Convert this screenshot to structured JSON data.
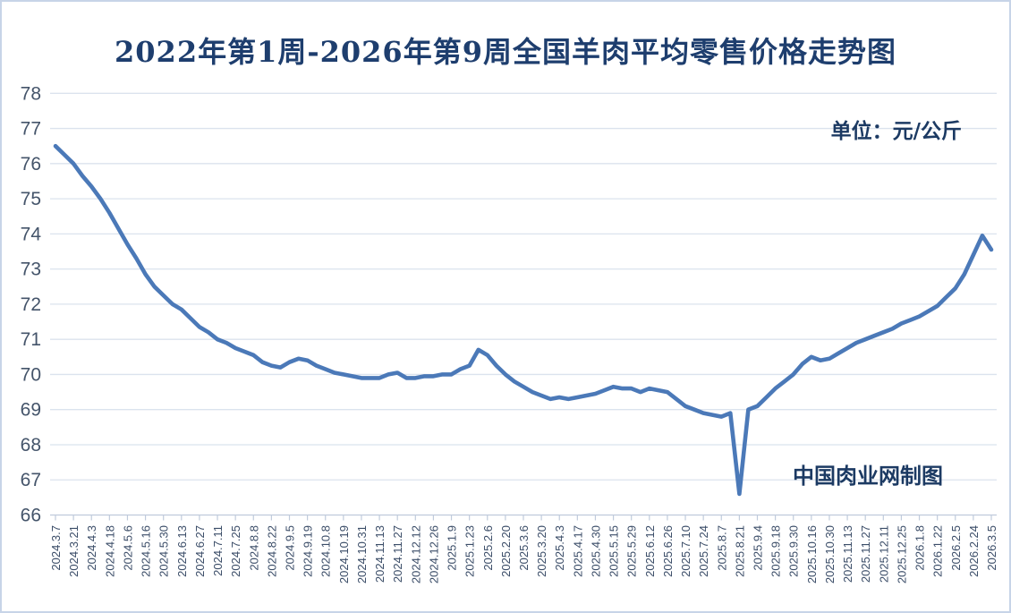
{
  "title": "2022年第1周-2026年第9周全国羊肉平均零售价格走势图",
  "unit_label": "单位：元/公斤",
  "watermark": "中国肉业网制图",
  "colors": {
    "line": "#4b79b8",
    "grid": "#dbe3ee",
    "axis": "#c0cbdc",
    "title_text": "#1e3e6e",
    "label_text": "#44546a",
    "frame": "#c7d4e8"
  },
  "chart_data": {
    "type": "line",
    "title": "2022年第1周-2026年第9周全国羊肉平均零售价格走势图",
    "unit": "元/公斤",
    "xlabel": "",
    "ylabel": "",
    "ylim": [
      66,
      78
    ],
    "grid": true,
    "legend_position": "none",
    "y_ticks": [
      78,
      77,
      76,
      75,
      74,
      73,
      72,
      71,
      70,
      69,
      68,
      67,
      66
    ],
    "x_tick_labels": [
      "2024.3.7",
      "2024.3.21",
      "2024.4.3",
      "2024.4.18",
      "2024.5.6",
      "2024.5.16",
      "2024.5.30",
      "2024.6.13",
      "2024.6.27",
      "2024.7.11",
      "2024.7.25",
      "2024.8.8",
      "2024.8.22",
      "2024.9.5",
      "2024.9.19",
      "2024.10.8",
      "2024.10.19",
      "2024.10.31",
      "2024.11.13",
      "2024.11.27",
      "2024.12.12",
      "2024.12.26",
      "2025.1.9",
      "2025.1.23",
      "2025.2.6",
      "2025.2.20",
      "2025.3.6",
      "2025.3.20",
      "2025.4.3",
      "2025.4.17",
      "2025.4.30",
      "2025.5.15",
      "2025.5.29",
      "2025.6.12",
      "2025.6.26",
      "2025.7.10",
      "2025.7.24",
      "2025.8.7",
      "2025.8.21",
      "2025.9.4",
      "2025.9.18",
      "2025.9.30",
      "2025.10.16",
      "2025.10.30",
      "2025.11.13",
      "2025.11.27",
      "2025.12.11",
      "2025.12.25",
      "2026.1.8",
      "2026.1.22",
      "2026.2.5",
      "2026.2.24",
      "2026.3.5"
    ],
    "series": [
      {
        "name": "全国羊肉平均零售价格",
        "color": "#4b79b8",
        "points": [
          [
            0,
            76.5
          ],
          [
            0.5,
            76.25
          ],
          [
            1,
            76.0
          ],
          [
            1.5,
            75.65
          ],
          [
            2,
            75.35
          ],
          [
            2.5,
            75.0
          ],
          [
            3,
            74.6
          ],
          [
            3.5,
            74.15
          ],
          [
            4,
            73.7
          ],
          [
            4.5,
            73.3
          ],
          [
            5,
            72.85
          ],
          [
            5.5,
            72.5
          ],
          [
            6,
            72.25
          ],
          [
            6.5,
            72.0
          ],
          [
            7,
            71.85
          ],
          [
            7.5,
            71.6
          ],
          [
            8,
            71.35
          ],
          [
            8.5,
            71.2
          ],
          [
            9,
            71.0
          ],
          [
            9.5,
            70.9
          ],
          [
            10,
            70.75
          ],
          [
            10.5,
            70.65
          ],
          [
            11,
            70.55
          ],
          [
            11.5,
            70.35
          ],
          [
            12,
            70.25
          ],
          [
            12.5,
            70.2
          ],
          [
            13,
            70.35
          ],
          [
            13.5,
            70.45
          ],
          [
            14,
            70.4
          ],
          [
            14.5,
            70.25
          ],
          [
            15,
            70.15
          ],
          [
            15.5,
            70.05
          ],
          [
            16,
            70.0
          ],
          [
            16.5,
            69.95
          ],
          [
            17,
            69.9
          ],
          [
            17.5,
            69.9
          ],
          [
            18,
            69.9
          ],
          [
            18.5,
            70.0
          ],
          [
            19,
            70.05
          ],
          [
            19.5,
            69.9
          ],
          [
            20,
            69.9
          ],
          [
            20.5,
            69.95
          ],
          [
            21,
            69.95
          ],
          [
            21.5,
            70.0
          ],
          [
            22,
            70.0
          ],
          [
            22.5,
            70.15
          ],
          [
            23,
            70.25
          ],
          [
            23.5,
            70.7
          ],
          [
            24,
            70.55
          ],
          [
            24.5,
            70.25
          ],
          [
            25,
            70.0
          ],
          [
            25.5,
            69.8
          ],
          [
            26,
            69.65
          ],
          [
            26.5,
            69.5
          ],
          [
            27,
            69.4
          ],
          [
            27.5,
            69.3
          ],
          [
            28,
            69.35
          ],
          [
            28.5,
            69.3
          ],
          [
            29,
            69.35
          ],
          [
            29.5,
            69.4
          ],
          [
            30,
            69.45
          ],
          [
            30.5,
            69.55
          ],
          [
            31,
            69.65
          ],
          [
            31.5,
            69.6
          ],
          [
            32,
            69.6
          ],
          [
            32.5,
            69.5
          ],
          [
            33,
            69.6
          ],
          [
            33.5,
            69.55
          ],
          [
            34,
            69.5
          ],
          [
            34.5,
            69.3
          ],
          [
            35,
            69.1
          ],
          [
            35.5,
            69.0
          ],
          [
            36,
            68.9
          ],
          [
            36.5,
            68.85
          ],
          [
            37,
            68.8
          ],
          [
            37.5,
            68.9
          ],
          [
            38,
            66.6
          ],
          [
            38.5,
            69.0
          ],
          [
            39,
            69.1
          ],
          [
            39.5,
            69.35
          ],
          [
            40,
            69.6
          ],
          [
            40.5,
            69.8
          ],
          [
            41,
            70.0
          ],
          [
            41.5,
            70.3
          ],
          [
            42,
            70.5
          ],
          [
            42.5,
            70.4
          ],
          [
            43,
            70.45
          ],
          [
            43.5,
            70.6
          ],
          [
            44,
            70.75
          ],
          [
            44.5,
            70.9
          ],
          [
            45,
            71.0
          ],
          [
            45.5,
            71.1
          ],
          [
            46,
            71.2
          ],
          [
            46.5,
            71.3
          ],
          [
            47,
            71.45
          ],
          [
            47.5,
            71.55
          ],
          [
            48,
            71.65
          ],
          [
            48.5,
            71.8
          ],
          [
            49,
            71.95
          ],
          [
            49.5,
            72.2
          ],
          [
            50,
            72.45
          ],
          [
            50.5,
            72.85
          ],
          [
            51,
            73.4
          ],
          [
            51.5,
            73.95
          ],
          [
            52,
            73.55
          ]
        ]
      }
    ]
  }
}
